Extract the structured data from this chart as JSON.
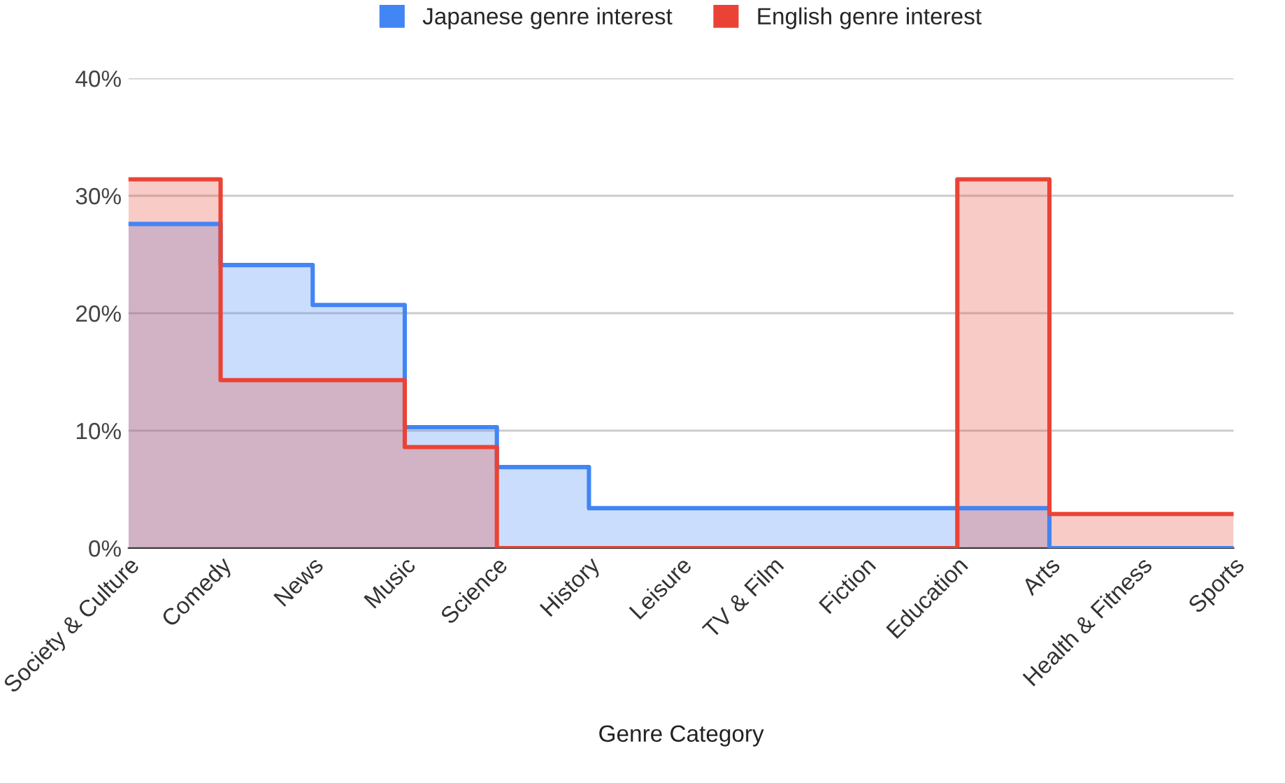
{
  "chart_data": {
    "type": "step",
    "xlabel": "Genre Category",
    "categories": [
      "Society & Culture",
      "Comedy",
      "News",
      "Music",
      "Science",
      "History",
      "Leisure",
      "TV & Film",
      "Fiction",
      "Education",
      "Arts",
      "Health & Fitness",
      "Sports"
    ],
    "series": [
      {
        "name": "Japanese genre interest",
        "color": "#4285f4",
        "values": [
          27.6,
          24.1,
          20.7,
          10.3,
          6.9,
          3.4,
          3.4,
          3.4,
          3.4,
          3.4,
          0,
          0,
          0
        ]
      },
      {
        "name": "English genre interest",
        "color": "#ea4335",
        "values": [
          31.4,
          14.3,
          14.3,
          8.6,
          0,
          0,
          0,
          0,
          0,
          31.4,
          2.9,
          2.9,
          2.9
        ]
      }
    ],
    "ylim": [
      0,
      40
    ],
    "yticks": [
      {
        "value": 0,
        "label": "0%"
      },
      {
        "value": 10,
        "label": "10%"
      },
      {
        "value": 20,
        "label": "20%"
      },
      {
        "value": 30,
        "label": "30%"
      },
      {
        "value": 40,
        "label": "40%"
      }
    ],
    "grid": "y",
    "legend": "top"
  }
}
